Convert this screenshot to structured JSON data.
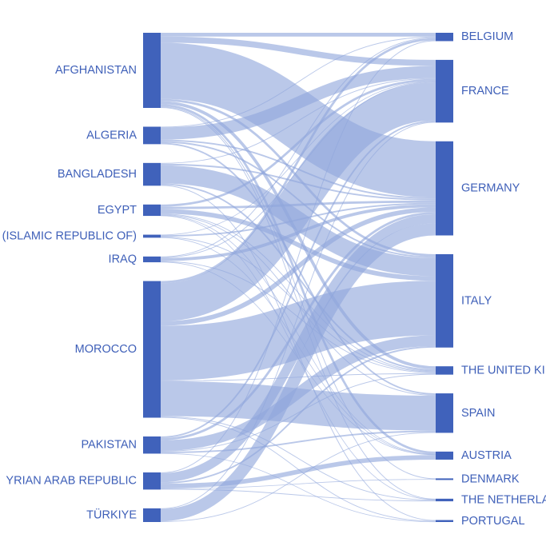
{
  "colors": {
    "node": "#4062bb",
    "link": "#8fa6dc",
    "label": "#3e5fb8"
  },
  "chart_data": {
    "type": "sankey",
    "sources": [
      {
        "id": "afghanistan",
        "label": "AFGHANISTAN"
      },
      {
        "id": "algeria",
        "label": "ALGERIA"
      },
      {
        "id": "bangladesh",
        "label": "BANGLADESH"
      },
      {
        "id": "egypt",
        "label": "EGYPT"
      },
      {
        "id": "iran",
        "label": "(ISLAMIC REPUBLIC OF)"
      },
      {
        "id": "iraq",
        "label": "IRAQ"
      },
      {
        "id": "morocco",
        "label": "MOROCCO"
      },
      {
        "id": "pakistan",
        "label": "PAKISTAN"
      },
      {
        "id": "syria",
        "label": "YRIAN ARAB REPUBLIC"
      },
      {
        "id": "turkiye",
        "label": "TÜRKIYE"
      }
    ],
    "targets": [
      {
        "id": "belgium",
        "label": "BELGIUM"
      },
      {
        "id": "france",
        "label": "FRANCE"
      },
      {
        "id": "germany",
        "label": "GERMANY"
      },
      {
        "id": "italy",
        "label": "ITALY"
      },
      {
        "id": "uk",
        "label": "THE UNITED KI"
      },
      {
        "id": "spain",
        "label": "SPAIN"
      },
      {
        "id": "austria",
        "label": "AUSTRIA"
      },
      {
        "id": "denmark",
        "label": "DENMARK"
      },
      {
        "id": "netherlands",
        "label": "THE NETHERLA"
      },
      {
        "id": "portugal",
        "label": "PORTUGAL"
      }
    ],
    "flows": [
      {
        "source": "afghanistan",
        "target": "belgium",
        "value": 2.5
      },
      {
        "source": "afghanistan",
        "target": "france",
        "value": 4
      },
      {
        "source": "afghanistan",
        "target": "germany",
        "value": 37
      },
      {
        "source": "afghanistan",
        "target": "italy",
        "value": 1.5
      },
      {
        "source": "afghanistan",
        "target": "uk",
        "value": 2
      },
      {
        "source": "afghanistan",
        "target": "austria",
        "value": 1.5
      },
      {
        "source": "afghanistan",
        "target": "denmark",
        "value": 0.5
      },
      {
        "source": "afghanistan",
        "target": "netherlands",
        "value": 0.5
      },
      {
        "source": "algeria",
        "target": "france",
        "value": 8
      },
      {
        "source": "algeria",
        "target": "germany",
        "value": 1
      },
      {
        "source": "algeria",
        "target": "italy",
        "value": 1
      },
      {
        "source": "algeria",
        "target": "spain",
        "value": 1
      },
      {
        "source": "algeria",
        "target": "belgium",
        "value": 0.5
      },
      {
        "source": "bangladesh",
        "target": "italy",
        "value": 12
      },
      {
        "source": "bangladesh",
        "target": "france",
        "value": 0.5
      },
      {
        "source": "bangladesh",
        "target": "germany",
        "value": 1
      },
      {
        "source": "bangladesh",
        "target": "uk",
        "value": 1
      },
      {
        "source": "bangladesh",
        "target": "portugal",
        "value": 0.5
      },
      {
        "source": "egypt",
        "target": "italy",
        "value": 3
      },
      {
        "source": "egypt",
        "target": "france",
        "value": 1.5
      },
      {
        "source": "egypt",
        "target": "germany",
        "value": 1.5
      },
      {
        "source": "egypt",
        "target": "uk",
        "value": 0.5
      },
      {
        "source": "egypt",
        "target": "spain",
        "value": 0.5
      },
      {
        "source": "egypt",
        "target": "austria",
        "value": 0.3
      },
      {
        "source": "egypt",
        "target": "netherlands",
        "value": 0.2
      },
      {
        "source": "iran",
        "target": "germany",
        "value": 1
      },
      {
        "source": "iran",
        "target": "uk",
        "value": 0.5
      },
      {
        "source": "iran",
        "target": "france",
        "value": 0.3
      },
      {
        "source": "iran",
        "target": "austria",
        "value": 0.2
      },
      {
        "source": "iraq",
        "target": "germany",
        "value": 2
      },
      {
        "source": "iraq",
        "target": "belgium",
        "value": 0.5
      },
      {
        "source": "iraq",
        "target": "france",
        "value": 0.5
      },
      {
        "source": "iraq",
        "target": "uk",
        "value": 0.5
      },
      {
        "source": "iraq",
        "target": "austria",
        "value": 0.3
      },
      {
        "source": "morocco",
        "target": "belgium",
        "value": 1.5
      },
      {
        "source": "morocco",
        "target": "france",
        "value": 25
      },
      {
        "source": "morocco",
        "target": "germany",
        "value": 3
      },
      {
        "source": "morocco",
        "target": "italy",
        "value": 36
      },
      {
        "source": "morocco",
        "target": "spain",
        "value": 23
      },
      {
        "source": "morocco",
        "target": "uk",
        "value": 0.5
      },
      {
        "source": "morocco",
        "target": "netherlands",
        "value": 0.5
      },
      {
        "source": "morocco",
        "target": "portugal",
        "value": 0.5
      },
      {
        "source": "pakistan",
        "target": "italy",
        "value": 7
      },
      {
        "source": "pakistan",
        "target": "france",
        "value": 1
      },
      {
        "source": "pakistan",
        "target": "germany",
        "value": 1.5
      },
      {
        "source": "pakistan",
        "target": "spain",
        "value": 1
      },
      {
        "source": "pakistan",
        "target": "uk",
        "value": 0.5
      },
      {
        "source": "pakistan",
        "target": "portugal",
        "value": 0.3
      },
      {
        "source": "syria",
        "target": "germany",
        "value": 6
      },
      {
        "source": "syria",
        "target": "italy",
        "value": 1
      },
      {
        "source": "syria",
        "target": "austria",
        "value": 3
      },
      {
        "source": "syria",
        "target": "belgium",
        "value": 0.5
      },
      {
        "source": "syria",
        "target": "netherlands",
        "value": 0.5
      },
      {
        "source": "syria",
        "target": "denmark",
        "value": 0.3
      },
      {
        "source": "turkiye",
        "target": "germany",
        "value": 8
      },
      {
        "source": "turkiye",
        "target": "france",
        "value": 0.5
      },
      {
        "source": "turkiye",
        "target": "spain",
        "value": 0.5
      }
    ]
  }
}
